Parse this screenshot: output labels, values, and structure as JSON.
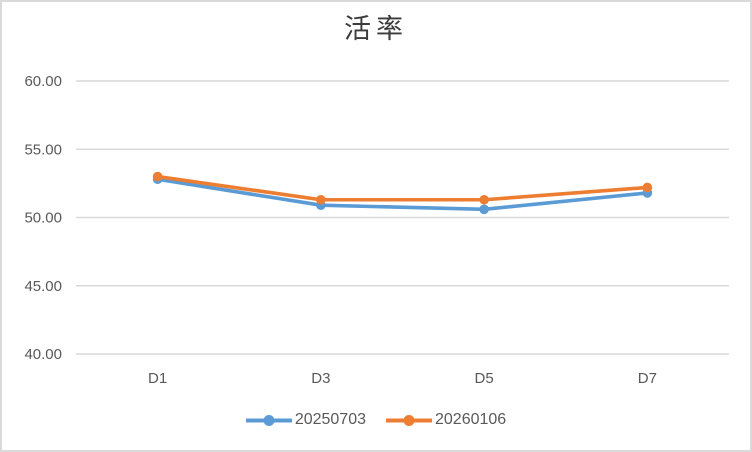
{
  "chart": {
    "background": "#FFFFFF",
    "border_color": "#D9D9D9"
  },
  "chart_data": {
    "type": "line",
    "title": "活率",
    "title_color": "#3B3B3B",
    "categories": [
      "D1",
      "D3",
      "D5",
      "D7"
    ],
    "series": [
      {
        "name": "20250703",
        "color": "#5B9BD5",
        "values": [
          52.8,
          50.9,
          50.6,
          51.8
        ]
      },
      {
        "name": "20260106",
        "color": "#ED7D31",
        "values": [
          53.0,
          51.3,
          51.3,
          52.2
        ]
      }
    ],
    "xlabel": "",
    "ylabel": "",
    "ylim": [
      40,
      60
    ],
    "ytick_step": 5,
    "ytick_labels": [
      "40.00",
      "45.00",
      "50.00",
      "55.00",
      "60.00"
    ],
    "grid": true,
    "gridline_color": "#D9D9D9",
    "axis_text_color": "#595959",
    "legend_position": "bottom"
  }
}
